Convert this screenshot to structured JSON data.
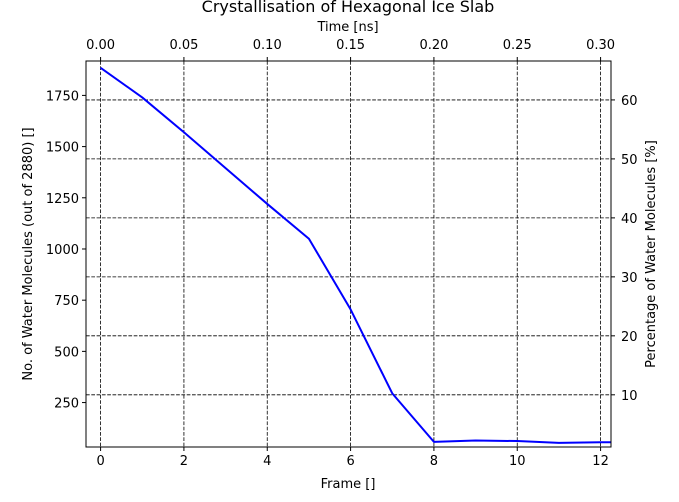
{
  "chart_data": {
    "type": "line",
    "title": "Crystallisation of Hexagonal Ice Slab",
    "xlabel": "Frame []",
    "ylabel": "No. of Water Molecules (out of 2880) []",
    "top_xlabel": "Time [ns]",
    "right_ylabel": "Percentage of Water Molecules [%]",
    "xlim": [
      -0.35,
      12.25
    ],
    "ylim": [
      33,
      1918
    ],
    "top_xlim": [
      -0.00875,
      0.30625
    ],
    "right_ylim": [
      1.15,
      66.6
    ],
    "x_ticks": [
      0,
      2,
      4,
      6,
      8,
      10,
      12
    ],
    "x_tick_labels": [
      "0",
      "2",
      "4",
      "6",
      "8",
      "10",
      "12"
    ],
    "y_ticks": [
      250,
      500,
      750,
      1000,
      1250,
      1500,
      1750
    ],
    "y_tick_labels": [
      "250",
      "500",
      "750",
      "1000",
      "1250",
      "1500",
      "1750"
    ],
    "top_ticks": [
      0.0,
      0.05,
      0.1,
      0.15,
      0.2,
      0.25,
      0.3
    ],
    "top_tick_labels": [
      "0.00",
      "0.05",
      "0.10",
      "0.15",
      "0.20",
      "0.25",
      "0.30"
    ],
    "right_ticks": [
      10,
      20,
      30,
      40,
      50,
      60
    ],
    "right_tick_labels": [
      "10",
      "20",
      "30",
      "40",
      "50",
      "60"
    ],
    "grid": true,
    "grid_style": "dashed",
    "line_color": "#0000ff",
    "series": [
      {
        "x": [
          0,
          1,
          2,
          3,
          4,
          5,
          6,
          7,
          8,
          9,
          10,
          11,
          12,
          12.25
        ],
        "y": [
          1885,
          1740,
          1570,
          1395,
          1220,
          1050,
          705,
          295,
          58,
          65,
          62,
          53,
          56,
          56
        ]
      }
    ]
  }
}
